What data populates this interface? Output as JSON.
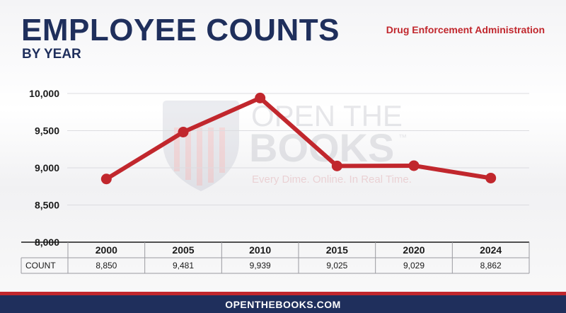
{
  "header": {
    "title": "EMPLOYEE COUNTS",
    "subtitle": "BY YEAR",
    "agency": "Drug Enforcement Administration"
  },
  "watermark": {
    "brand_line1": "OPEN THE",
    "brand_line2": "BOOKS",
    "trademark": "™",
    "tagline": "Every Dime. Online. In Real Time."
  },
  "footer": {
    "url": "OPENTHEBOOKS.COM"
  },
  "colors": {
    "navy": "#1f2f5c",
    "red": "#c1272d",
    "line": "#c1272d"
  },
  "chart_data": {
    "type": "line",
    "categories": [
      "2000",
      "2005",
      "2010",
      "2015",
      "2020",
      "2024"
    ],
    "values": [
      8850,
      9481,
      9939,
      9025,
      9029,
      8862
    ],
    "table_row_label": "COUNT",
    "table_values": [
      "8,850",
      "9,481",
      "9,939",
      "9,025",
      "9,029",
      "8,862"
    ],
    "yticks": [
      8000,
      8500,
      9000,
      9500,
      10000
    ],
    "ytick_labels": [
      "8,000",
      "8,500",
      "9,000",
      "9,500",
      "10,000"
    ],
    "ylim": [
      8000,
      10000
    ],
    "grid": true
  }
}
